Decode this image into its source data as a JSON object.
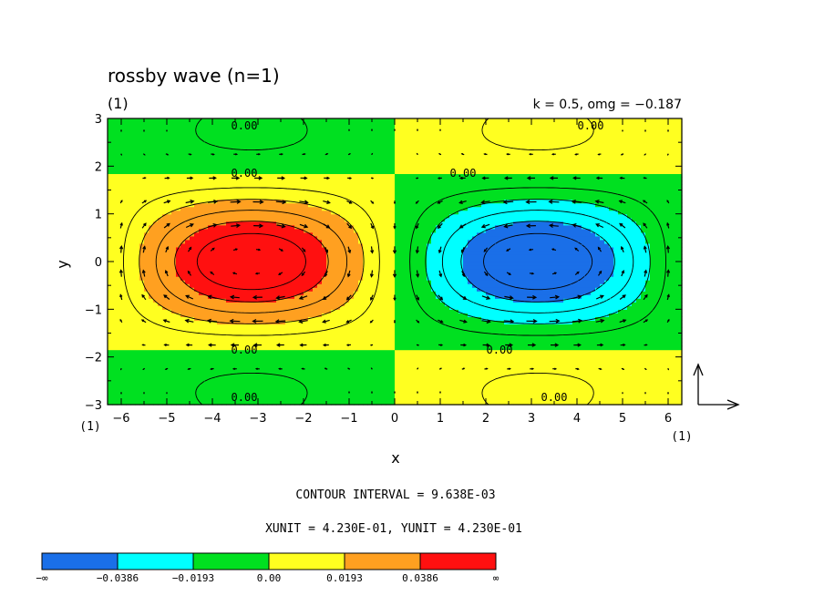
{
  "chart_data": {
    "type": "heatmap",
    "title": "rossby wave (n=1)",
    "panel_label": "(1)",
    "parameters": "k = 0.5, omg = −0.187",
    "xlabel": "x",
    "ylabel": "y",
    "xlim": [
      -6.3,
      6.3
    ],
    "ylim": [
      -3,
      3
    ],
    "x_ticks": [
      "−6",
      "−5",
      "−4",
      "−3",
      "−2",
      "−1",
      "0",
      "1",
      "2",
      "3",
      "4",
      "5",
      "6"
    ],
    "y_ticks": [
      "−3",
      "−2",
      "−1",
      "0",
      "1",
      "2",
      "3"
    ],
    "x_axis_note": "(1)",
    "vector_ref_note": "(1)",
    "contour_labels": [
      {
        "text": "0.00",
        "x": -3.3,
        "y": 2.85
      },
      {
        "text": "0.00",
        "x": -3.3,
        "y": 1.85
      },
      {
        "text": "0.00",
        "x": -3.3,
        "y": -1.85
      },
      {
        "text": "0.00",
        "x": -3.3,
        "y": -2.85
      },
      {
        "text": "0.00",
        "x": 4.3,
        "y": 2.85
      },
      {
        "text": "0.00",
        "x": 1.5,
        "y": 1.85
      },
      {
        "text": "0.00",
        "x": 2.3,
        "y": -1.85
      },
      {
        "text": "0.00",
        "x": 3.5,
        "y": -2.85
      }
    ],
    "contour_interval_text": "CONTOUR INTERVAL = 9.638E-03",
    "unit_text": "XUNIT = 4.230E-01, YUNIT = 4.230E-01",
    "colorbar": {
      "colors": [
        "#1a6fe8",
        "#00ffff",
        "#00e020",
        "#ffff20",
        "#ffa020",
        "#ff1010"
      ],
      "labels": [
        "−∞",
        "−0.0386",
        "−0.0193",
        "0.00",
        "0.0193",
        "0.0386",
        "∞"
      ]
    },
    "levels": [
      -0.0386,
      -0.0193,
      0,
      0.0193,
      0.0386
    ],
    "field": {
      "description_cells": [
        {
          "x_range": [
            -6.3,
            -0.0
          ],
          "y_range": [
            1.85,
            3
          ],
          "sign": "negative"
        },
        {
          "x_range": [
            -6.3,
            -0.0
          ],
          "y_range": [
            -1.85,
            1.85
          ],
          "sign": "positive"
        },
        {
          "x_range": [
            -6.3,
            -0.0
          ],
          "y_range": [
            -3,
            -1.85
          ],
          "sign": "negative"
        },
        {
          "x_range": [
            0.0,
            6.3
          ],
          "y_range": [
            1.85,
            3
          ],
          "sign": "positive"
        },
        {
          "x_range": [
            0.0,
            6.3
          ],
          "y_range": [
            -1.85,
            1.85
          ],
          "sign": "negative"
        },
        {
          "x_range": [
            0.0,
            6.3
          ],
          "y_range": [
            -3,
            -1.85
          ],
          "sign": "positive"
        }
      ]
    }
  }
}
